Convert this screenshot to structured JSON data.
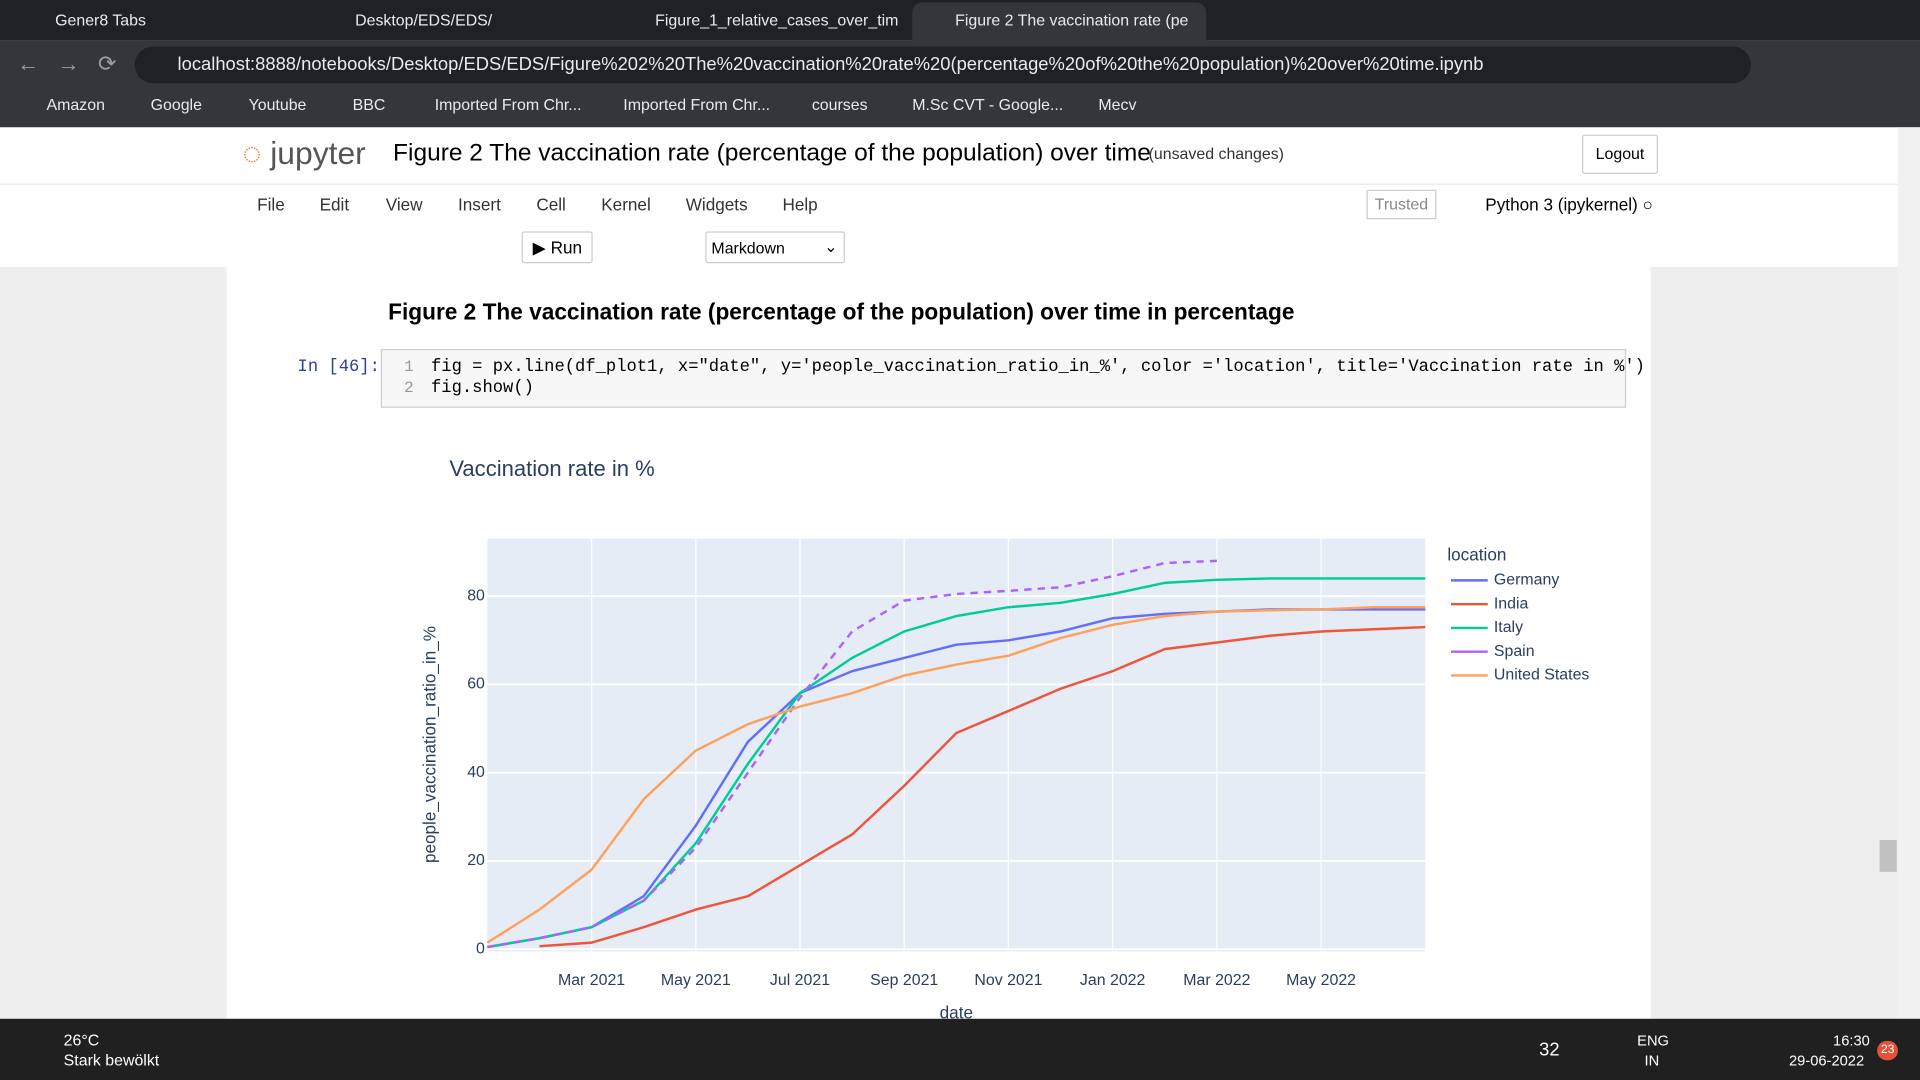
{
  "browser": {
    "tabs": [
      "Gener8 Tabs",
      "Desktop/EDS/EDS/",
      "Figure_1_relative_cases_over_tim",
      "Figure 2 The vaccination rate (pe"
    ],
    "url": "localhost:8888/notebooks/Desktop/EDS/EDS/Figure%202%20The%20vaccination%20rate%20(percentage%20of%20the%20population)%20over%20time.ipynb",
    "bookmarks": [
      "Amazon",
      "Google",
      "Youtube",
      "BBC",
      "Imported From Chr...",
      "Imported From Chr...",
      "courses",
      "M.Sc CVT - Google...",
      "Mecv"
    ]
  },
  "notebook": {
    "logo": "jupyter",
    "title": "Figure 2 The vaccination rate (percentage of the population) over time",
    "status": "(unsaved changes)",
    "logout": "Logout",
    "menu": [
      "File",
      "Edit",
      "View",
      "Insert",
      "Cell",
      "Kernel",
      "Widgets",
      "Help"
    ],
    "trusted": "Trusted",
    "kernel": "Python 3 (ipykernel)",
    "run": "Run",
    "cell_type": "Markdown",
    "heading": "Figure 2 The vaccination rate (percentage of the population) over time in percentage",
    "prompt": "In [46]:",
    "code": [
      {
        "number": "1",
        "text": "fig = px.line(df_plot1, x=\"date\", y='people_vaccination_ratio_in_%', color ='location', title='Vaccination rate in %')"
      },
      {
        "number": "2",
        "text": "fig.show()"
      }
    ]
  },
  "chart_data": {
    "type": "line",
    "title": "Vaccination rate in %",
    "x_label": "date",
    "y_label": "people_vaccination_ratio_in_%",
    "legend_title": "location",
    "grid": true,
    "x": [
      "2021-01",
      "2021-02",
      "2021-03",
      "2021-04",
      "2021-05",
      "2021-06",
      "2021-07",
      "2021-08",
      "2021-09",
      "2021-10",
      "2021-11",
      "2021-12",
      "2022-01",
      "2022-02",
      "2022-03",
      "2022-04",
      "2022-05",
      "2022-06",
      "2022-07"
    ],
    "xlim": [
      "2021-01",
      "2022-07"
    ],
    "xticks": [
      {
        "value": "2021-03",
        "label": "Mar 2021"
      },
      {
        "value": "2021-05",
        "label": "May 2021"
      },
      {
        "value": "2021-07",
        "label": "Jul 2021"
      },
      {
        "value": "2021-09",
        "label": "Sep 2021"
      },
      {
        "value": "2021-11",
        "label": "Nov 2021"
      },
      {
        "value": "2022-01",
        "label": "Jan 2022"
      },
      {
        "value": "2022-03",
        "label": "Mar 2022"
      },
      {
        "value": "2022-05",
        "label": "May 2022"
      }
    ],
    "ylim": [
      -0.5,
      93
    ],
    "yticks": [
      0,
      20,
      40,
      60,
      80
    ],
    "series": [
      {
        "name": "Germany",
        "color": "#636efa",
        "values": [
          0.5,
          2.5,
          5,
          12,
          28,
          47,
          58,
          63,
          66,
          69,
          70,
          72,
          75,
          76,
          76.5,
          77,
          77,
          77,
          77
        ]
      },
      {
        "name": "India",
        "color": "#ef553b",
        "values": [
          null,
          0.7,
          1.5,
          5,
          9,
          12,
          19,
          26,
          37,
          49,
          54,
          59,
          63,
          68,
          69.5,
          71,
          72,
          72.5,
          73
        ]
      },
      {
        "name": "Italy",
        "color": "#00cc96",
        "values": [
          0.5,
          2.5,
          5,
          11,
          24,
          42,
          58,
          66,
          72,
          75.5,
          77.5,
          78.5,
          80.5,
          83,
          83.7,
          84,
          84,
          84,
          84
        ]
      },
      {
        "name": "Spain",
        "color": "#ab63fa",
        "dash": "dash",
        "values": [
          0.5,
          2.5,
          5,
          11,
          23,
          40,
          57,
          72,
          79,
          80.5,
          81.2,
          82,
          84.5,
          87.5,
          88,
          null,
          null,
          null,
          null
        ]
      },
      {
        "name": "United States",
        "color": "#ffa15a",
        "values": [
          1.5,
          9,
          18,
          34,
          45,
          51,
          55,
          58,
          62,
          64.5,
          66.5,
          70.5,
          73.5,
          75.5,
          76.5,
          76.8,
          77,
          77.5,
          77.5
        ]
      }
    ]
  },
  "taskbar": {
    "temperature": "26°C",
    "weather": "Stark bewölkt",
    "tray_count": "32",
    "language": "ENG",
    "region": "IN",
    "time": "16:30",
    "date": "29-06-2022",
    "notifications": "23"
  }
}
